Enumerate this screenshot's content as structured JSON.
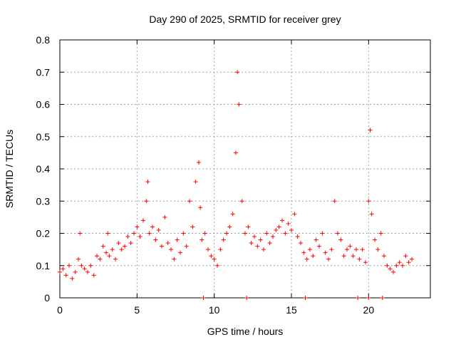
{
  "chart_data": {
    "type": "scatter",
    "title": "Day 290 of 2025, SRMTID for receiver grey",
    "xlabel": "GPS time / hours",
    "ylabel": "SRMTID / TECUs",
    "xlim": [
      0,
      24
    ],
    "ylim": [
      0,
      0.8
    ],
    "x_ticks": [
      0,
      5,
      10,
      15,
      20
    ],
    "x_tick_labels": [
      "0",
      "5",
      "10",
      "15",
      "20"
    ],
    "y_ticks": [
      0,
      0.1,
      0.2,
      0.3,
      0.4,
      0.5,
      0.6,
      0.7,
      0.8
    ],
    "y_tick_labels": [
      "0",
      "0.1",
      "0.2",
      "0.3",
      "0.4",
      "0.5",
      "0.6",
      "0.7",
      "0.8"
    ],
    "grid": true,
    "marker": "+",
    "series": [
      {
        "name": "SRMTID",
        "color": "#ff0000",
        "x": [
          0.0,
          0.2,
          0.4,
          0.6,
          0.8,
          1.0,
          1.2,
          1.3,
          1.4,
          1.6,
          1.8,
          2.0,
          2.2,
          2.4,
          2.6,
          2.8,
          3.0,
          3.1,
          3.2,
          3.4,
          3.6,
          3.8,
          4.0,
          4.2,
          4.4,
          4.6,
          4.8,
          5.0,
          5.2,
          5.4,
          5.6,
          5.7,
          5.8,
          6.0,
          6.2,
          6.4,
          6.6,
          6.8,
          7.0,
          7.2,
          7.4,
          7.6,
          7.8,
          8.0,
          8.2,
          8.4,
          8.6,
          8.8,
          9.0,
          9.1,
          9.2,
          9.4,
          9.6,
          9.8,
          10.0,
          10.2,
          10.4,
          10.6,
          10.8,
          11.0,
          11.2,
          11.4,
          11.5,
          11.6,
          11.8,
          12.0,
          12.2,
          12.4,
          12.6,
          12.8,
          13.0,
          13.2,
          13.4,
          13.6,
          13.8,
          14.0,
          14.2,
          14.4,
          14.6,
          14.8,
          15.0,
          15.2,
          15.4,
          15.6,
          15.8,
          16.0,
          16.2,
          16.4,
          16.6,
          16.8,
          17.0,
          17.2,
          17.4,
          17.6,
          17.8,
          18.0,
          18.2,
          18.4,
          18.6,
          18.8,
          19.0,
          19.2,
          19.4,
          19.6,
          19.8,
          20.0,
          20.1,
          20.2,
          20.4,
          20.6,
          20.8,
          21.0,
          21.2,
          21.4,
          21.6,
          21.8,
          22.0,
          22.2,
          22.4,
          22.6,
          22.8,
          9.3,
          12.1,
          15.9,
          19.3,
          20.0,
          20.9
        ],
        "y": [
          0.08,
          0.09,
          0.07,
          0.1,
          0.06,
          0.08,
          0.12,
          0.2,
          0.1,
          0.09,
          0.08,
          0.1,
          0.07,
          0.13,
          0.12,
          0.16,
          0.14,
          0.2,
          0.13,
          0.15,
          0.12,
          0.17,
          0.15,
          0.16,
          0.19,
          0.17,
          0.2,
          0.22,
          0.19,
          0.24,
          0.3,
          0.36,
          0.2,
          0.22,
          0.18,
          0.21,
          0.16,
          0.25,
          0.17,
          0.15,
          0.12,
          0.18,
          0.14,
          0.2,
          0.16,
          0.3,
          0.22,
          0.36,
          0.42,
          0.28,
          0.18,
          0.2,
          0.15,
          0.13,
          0.12,
          0.1,
          0.15,
          0.18,
          0.2,
          0.22,
          0.26,
          0.45,
          0.7,
          0.6,
          0.3,
          0.2,
          0.22,
          0.17,
          0.19,
          0.16,
          0.18,
          0.15,
          0.2,
          0.17,
          0.19,
          0.21,
          0.22,
          0.24,
          0.2,
          0.23,
          0.21,
          0.26,
          0.19,
          0.17,
          0.14,
          0.12,
          0.15,
          0.13,
          0.18,
          0.16,
          0.2,
          0.14,
          0.12,
          0.15,
          0.3,
          0.2,
          0.18,
          0.13,
          0.15,
          0.16,
          0.13,
          0.15,
          0.12,
          0.15,
          0.11,
          0.3,
          0.52,
          0.26,
          0.18,
          0.15,
          0.2,
          0.13,
          0.1,
          0.09,
          0.08,
          0.1,
          0.11,
          0.1,
          0.13,
          0.11,
          0.12,
          0.0,
          0.0,
          0.0,
          0.0,
          0.0,
          0.0
        ]
      }
    ]
  }
}
